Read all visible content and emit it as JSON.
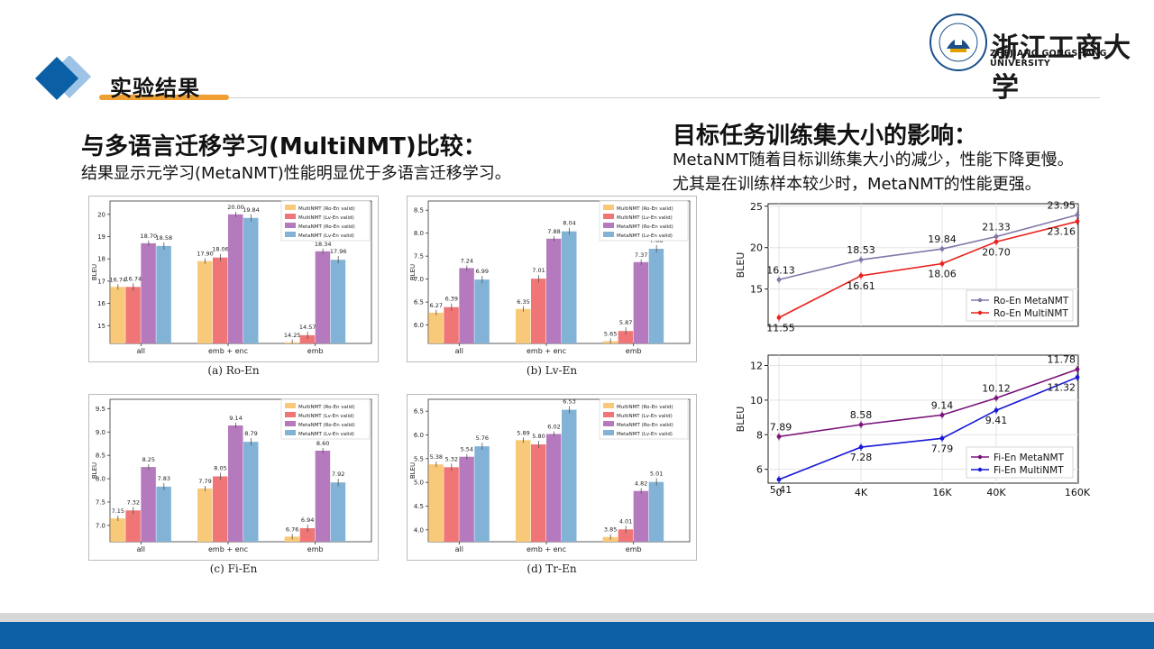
{
  "header": {
    "title": "实验结果"
  },
  "logo": {
    "name": "浙江工商大学",
    "sub": "ZHEJIANG GONGSHANG UNIVERSITY",
    "seal_text": "ZHEJIANG GONGSHANG UNIVERSITY"
  },
  "left": {
    "heading": "与多语言迁移学习(MultiNMT)比较：",
    "subtext": "结果显示元学习(MetaNMT)性能明显优于多语言迁移学习。"
  },
  "right": {
    "heading": "目标任务训练集大小的影响：",
    "line1": "MetaNMT随着目标训练集大小的减少，性能下降更慢。",
    "line2": "尤其是在训练样本较少时，MetaNMT的性能更强。"
  },
  "colors": {
    "multi_ro": "#f9c97a",
    "multi_lv": "#f07576",
    "meta_ro": "#b57abd",
    "meta_lv": "#82b3d6",
    "accent": "#f0a033",
    "brand": "#0b5fa5"
  },
  "chart_data": [
    {
      "type": "bar",
      "caption": "(a)  Ro-En",
      "categories": [
        "all",
        "emb + enc",
        "emb"
      ],
      "series": [
        {
          "name": "MultiNMT (Ro-En valid)",
          "values": [
            16.74,
            17.9,
            14.25
          ]
        },
        {
          "name": "MultiNMT (Lv-En valid)",
          "values": [
            16.74,
            18.06,
            14.57
          ]
        },
        {
          "name": "MetaNMT (Ro-En valid)",
          "values": [
            18.7,
            20.0,
            18.34
          ]
        },
        {
          "name": "MetaNMT (Lv-En valid)",
          "values": [
            18.58,
            19.84,
            17.96
          ]
        }
      ],
      "labels": [
        [
          "16.74",
          "17.90",
          "14.25"
        ],
        [
          "16.74",
          "18.06",
          "14.57"
        ],
        [
          "18.70",
          "20.00",
          "18.34"
        ],
        [
          "18.58",
          "19.84",
          "17.96"
        ]
      ],
      "ylim": [
        14.2,
        20.6
      ],
      "yticks": [
        15,
        16,
        17,
        18,
        19,
        20
      ],
      "ytick_labels": [
        "15",
        "16",
        "17",
        "18",
        "19",
        "20"
      ],
      "ylabel": "BLEU",
      "legend": "top-right",
      "grid": false
    },
    {
      "type": "bar",
      "caption": "(b)  Lv-En",
      "categories": [
        "all",
        "emb + enc",
        "emb"
      ],
      "series": [
        {
          "name": "MultiNMT (Ro-En valid)",
          "values": [
            6.27,
            6.35,
            5.65
          ]
        },
        {
          "name": "MultiNMT (Lv-En valid)",
          "values": [
            6.39,
            7.01,
            5.87
          ]
        },
        {
          "name": "MetaNMT (Ro-En valid)",
          "values": [
            7.24,
            7.88,
            7.37
          ]
        },
        {
          "name": "MetaNMT (Lv-En valid)",
          "values": [
            6.99,
            8.04,
            7.66
          ]
        }
      ],
      "labels": [
        [
          "6.27",
          "6.35",
          "5.65"
        ],
        [
          "6.39",
          "7.01",
          "5.87"
        ],
        [
          "7.24",
          "7.88",
          "7.37"
        ],
        [
          "6.99",
          "8.04",
          "7.66"
        ]
      ],
      "ylim": [
        5.6,
        8.7
      ],
      "yticks": [
        6.0,
        6.5,
        7.0,
        7.5,
        8.0,
        8.5
      ],
      "ytick_labels": [
        "6.0",
        "6.5",
        "7.0",
        "7.5",
        "8.0",
        "8.5"
      ],
      "ylabel": "BLEU",
      "legend": "top-right",
      "grid": false
    },
    {
      "type": "bar",
      "caption": "(c)  Fi-En",
      "categories": [
        "all",
        "emb + enc",
        "emb"
      ],
      "series": [
        {
          "name": "MultiNMT (Ro-En valid)",
          "values": [
            7.15,
            7.79,
            6.76
          ]
        },
        {
          "name": "MultiNMT (Lv-En valid)",
          "values": [
            7.32,
            8.05,
            6.94
          ]
        },
        {
          "name": "MetaNMT (Ro-En valid)",
          "values": [
            8.25,
            9.14,
            8.6
          ]
        },
        {
          "name": "MetaNMT (Lv-En valid)",
          "values": [
            7.83,
            8.79,
            7.92
          ]
        }
      ],
      "labels": [
        [
          "7.15",
          "7.79",
          "6.76"
        ],
        [
          "7.32",
          "8.05",
          "6.94"
        ],
        [
          "8.25",
          "9.14",
          "8.60"
        ],
        [
          "7.83",
          "8.79",
          "7.92"
        ]
      ],
      "ylim": [
        6.65,
        9.7
      ],
      "yticks": [
        7.0,
        7.5,
        8.0,
        8.5,
        9.0,
        9.5
      ],
      "ytick_labels": [
        "7.0",
        "7.5",
        "8.0",
        "8.5",
        "9.0",
        "9.5"
      ],
      "ylabel": "BLEU",
      "legend": "top-right",
      "grid": false
    },
    {
      "type": "bar",
      "caption": "(d)  Tr-En",
      "categories": [
        "all",
        "emb + enc",
        "emb"
      ],
      "series": [
        {
          "name": "MultiNMT (Ro-En valid)",
          "values": [
            5.38,
            5.89,
            3.85
          ]
        },
        {
          "name": "MultiNMT (Lv-En valid)",
          "values": [
            5.32,
            5.8,
            4.01
          ]
        },
        {
          "name": "MetaNMT (Ro-En valid)",
          "values": [
            5.54,
            6.02,
            4.82
          ]
        },
        {
          "name": "MetaNMT (Lv-En valid)",
          "values": [
            5.76,
            6.53,
            5.01
          ]
        }
      ],
      "labels": [
        [
          "5.38",
          "5.89",
          "3.85"
        ],
        [
          "5.32",
          "5.80",
          "4.01"
        ],
        [
          "5.54",
          "6.02",
          "4.82"
        ],
        [
          "5.76",
          "6.53",
          "5.01"
        ]
      ],
      "ylim": [
        3.75,
        6.75
      ],
      "yticks": [
        4.0,
        4.5,
        5.0,
        5.5,
        6.0,
        6.5
      ],
      "ytick_labels": [
        "4.0",
        "4.5",
        "5.0",
        "5.5",
        "6.0",
        "6.5"
      ],
      "ylabel": "BLEU",
      "legend": "top-right",
      "grid": false
    },
    {
      "type": "line",
      "x": [
        "0",
        "4K",
        "16K",
        "40K",
        "160K"
      ],
      "series": [
        {
          "name": "Ro-En MetaNMT",
          "color": "#8078a8",
          "values": [
            16.13,
            18.53,
            19.84,
            21.33,
            23.95
          ],
          "labels": [
            "16.13",
            "18.53",
            "19.84",
            "21.33",
            "23.95"
          ],
          "label_pos": "above"
        },
        {
          "name": "Ro-En MultiNMT",
          "color": "#e8211c",
          "values": [
            11.55,
            16.61,
            18.06,
            20.7,
            23.16
          ],
          "labels": [
            "11.55",
            "16.61",
            "18.06",
            "20.70",
            "23.16"
          ],
          "label_pos": "below"
        }
      ],
      "ylim": [
        10.5,
        25.3
      ],
      "yticks": [
        15,
        20,
        25
      ],
      "ytick_labels": [
        "15",
        "20",
        "25"
      ],
      "ylabel": "BLEU",
      "legend": "bottom-right",
      "grid": true
    },
    {
      "type": "line",
      "x": [
        "0",
        "4K",
        "16K",
        "40K",
        "160K"
      ],
      "series": [
        {
          "name": "Fi-En MetaNMT",
          "color": "#7a137a",
          "values": [
            7.89,
            8.58,
            9.14,
            10.12,
            11.78
          ],
          "labels": [
            "7.89",
            "8.58",
            "9.14",
            "10.12",
            "11.78"
          ],
          "label_pos": "above"
        },
        {
          "name": "Fi-En MultiNMT",
          "color": "#1717d8",
          "values": [
            5.41,
            7.28,
            7.79,
            9.41,
            11.32
          ],
          "labels": [
            "5.41",
            "7.28",
            "7.79",
            "9.41",
            "11.32"
          ],
          "label_pos": "below"
        }
      ],
      "ylim": [
        5.2,
        12.6
      ],
      "yticks": [
        6,
        8,
        10,
        12
      ],
      "ytick_labels": [
        "6",
        "8",
        "10",
        "12"
      ],
      "ylabel": "BLEU",
      "legend": "bottom-right",
      "grid": true
    }
  ]
}
